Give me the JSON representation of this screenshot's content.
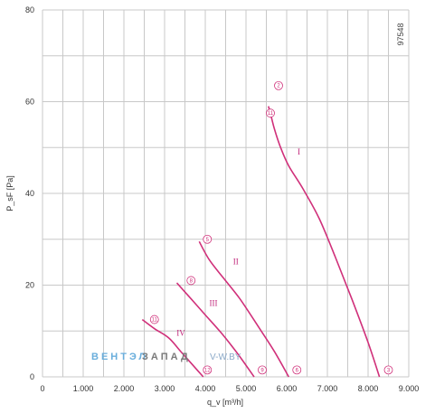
{
  "chart_data": {
    "type": "line",
    "title": "",
    "xlabel": "q_v [m³/h]",
    "ylabel": "P_sF [Pa]",
    "xlim": [
      0,
      9000
    ],
    "ylim": [
      0,
      80
    ],
    "x_ticks": [
      0,
      1000,
      2000,
      3000,
      4000,
      5000,
      6000,
      7000,
      8000,
      9000
    ],
    "x_tick_labels": [
      "0",
      "1.000",
      "2.000",
      "3.000",
      "4.000",
      "5.000",
      "6.000",
      "7.000",
      "8.000",
      "9.000"
    ],
    "y_ticks": [
      0,
      20,
      40,
      60,
      80
    ],
    "y_tick_labels": [
      "0",
      "20",
      "40",
      "60",
      "80"
    ],
    "x_minor_grid_step": 500,
    "y_minor_grid_step": 10,
    "grid": true,
    "legend": "none",
    "line_color": "#d0307a",
    "series": [
      {
        "name": "I",
        "points": [
          [
            5550,
            59
          ],
          [
            5600,
            57.5
          ],
          [
            5700,
            54
          ],
          [
            5850,
            50
          ],
          [
            6050,
            46
          ],
          [
            6400,
            41
          ],
          [
            6800,
            34.5
          ],
          [
            7200,
            26
          ],
          [
            7600,
            17
          ],
          [
            8000,
            7.5
          ],
          [
            8280,
            0
          ]
        ],
        "label_at": [
          6300,
          48.5
        ]
      },
      {
        "name": "II",
        "points": [
          [
            3850,
            29.5
          ],
          [
            4100,
            25.5
          ],
          [
            4450,
            21.5
          ],
          [
            4850,
            17
          ],
          [
            5300,
            11
          ],
          [
            5700,
            5.5
          ],
          [
            6050,
            0
          ]
        ],
        "label_at": [
          4750,
          24.5
        ]
      },
      {
        "name": "III",
        "points": [
          [
            3300,
            20.5
          ],
          [
            3650,
            17
          ],
          [
            4000,
            13.5
          ],
          [
            4400,
            9.5
          ],
          [
            4800,
            5
          ],
          [
            5200,
            0
          ]
        ],
        "label_at": [
          4200,
          15.5
        ]
      },
      {
        "name": "IV",
        "points": [
          [
            2450,
            12.5
          ],
          [
            2750,
            10.5
          ],
          [
            3100,
            8.5
          ],
          [
            3400,
            5.5
          ],
          [
            3700,
            2.5
          ],
          [
            3950,
            0
          ]
        ],
        "label_at": [
          3400,
          9
        ]
      }
    ],
    "markers": [
      {
        "label": "2",
        "at": [
          5800,
          63.5
        ]
      },
      {
        "label": "11",
        "at": [
          5600,
          57.5
        ]
      },
      {
        "label": "3",
        "at": [
          8500,
          1.5
        ]
      },
      {
        "label": "5",
        "at": [
          4050,
          30
        ]
      },
      {
        "label": "6",
        "at": [
          6250,
          1.5
        ]
      },
      {
        "label": "8",
        "at": [
          3650,
          21
        ]
      },
      {
        "label": "9",
        "at": [
          5400,
          1.5
        ]
      },
      {
        "label": "11",
        "at": [
          2750,
          12.5
        ]
      },
      {
        "label": "12",
        "at": [
          4050,
          1.5
        ]
      }
    ]
  },
  "doc_id": "97548",
  "watermark": {
    "part1": "ВЕНТЭЛ",
    "part2": "ЗАПАД",
    "part3": "V-W.BY"
  }
}
